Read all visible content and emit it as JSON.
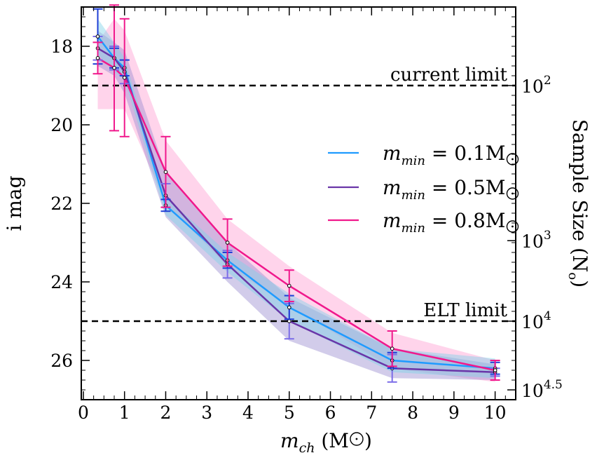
{
  "chart_data": {
    "type": "line",
    "xlabel_main": "m",
    "xlabel_sub": "ch",
    "xlabel_unit": "(M",
    "xlabel_unit_close": ")",
    "ylabel": "i mag",
    "y2label": "Sample Size  (N",
    "y2label_sub": "o",
    "y2label_close": ")",
    "xlim": [
      -0.05,
      10.5
    ],
    "ylim": [
      17.0,
      27.0
    ],
    "x_ticks": [
      0,
      1,
      2,
      3,
      4,
      5,
      6,
      7,
      8,
      9,
      10
    ],
    "x_tick_labels": [
      "0",
      "1",
      "2",
      "3",
      "4",
      "5",
      "6",
      "7",
      "8",
      "9",
      "10"
    ],
    "y_ticks": [
      18,
      20,
      22,
      24,
      26
    ],
    "y_tick_labels": [
      "18",
      "20",
      "22",
      "24",
      "26"
    ],
    "y2_ticks": [
      {
        "mag": 19.0,
        "base": "10",
        "exp": "2"
      },
      {
        "mag": 22.95,
        "base": "10",
        "exp": "3"
      },
      {
        "mag": 25.0,
        "base": "10",
        "exp": "4"
      },
      {
        "mag": 26.75,
        "base": "10",
        "exp": "4.5"
      }
    ],
    "limits": [
      {
        "name": "current-limit",
        "label": "current limit",
        "y": 19.0
      },
      {
        "name": "elt-limit",
        "label": "ELT limit",
        "y": 25.0
      }
    ],
    "series": [
      {
        "name": "0.1",
        "legend_prefix": "m",
        "legend_sub": "min",
        "legend_value": " = 0.1M",
        "color": "#1f9bff",
        "band_color": "#7fd3e8",
        "err_color": "#1f3fd6",
        "x": [
          0.35,
          0.75,
          1.0,
          2.0,
          3.5,
          5.0,
          7.5,
          10.0
        ],
        "y": [
          17.75,
          18.3,
          18.55,
          22.05,
          23.45,
          24.65,
          26.0,
          26.2
        ],
        "err": [
          0.7,
          0.25,
          0.2,
          0.15,
          0.2,
          0.3,
          0.2,
          0.15
        ],
        "band_lo": [
          17.3,
          17.9,
          18.3,
          21.85,
          23.25,
          24.3,
          25.7,
          25.95
        ],
        "band_hi": [
          18.2,
          18.65,
          18.85,
          22.3,
          23.75,
          25.0,
          26.3,
          26.45
        ]
      },
      {
        "name": "0.5",
        "legend_prefix": "m",
        "legend_sub": "min",
        "legend_value": " = 0.5M",
        "color": "#6a35a8",
        "band_color": "#9b8fd0",
        "err_color": "#7b6de8",
        "x": [
          0.35,
          0.75,
          1.0,
          2.0,
          3.5,
          5.0,
          7.5,
          10.0
        ],
        "y": [
          18.05,
          18.3,
          18.65,
          21.8,
          23.55,
          25.0,
          26.2,
          26.3
        ],
        "err": [
          0.3,
          0.3,
          0.3,
          0.3,
          0.35,
          0.45,
          0.35,
          0.1
        ],
        "band_lo": [
          17.6,
          17.9,
          18.1,
          21.2,
          23.0,
          24.4,
          25.7,
          26.1
        ],
        "band_hi": [
          18.5,
          18.75,
          19.2,
          22.35,
          24.0,
          25.5,
          26.45,
          26.5
        ]
      },
      {
        "name": "0.8",
        "legend_prefix": "m",
        "legend_sub": "min",
        "legend_value": " = 0.8M",
        "color": "#f0188c",
        "band_color": "#ff9fd2",
        "err_color": "#f0188c",
        "x": [
          0.35,
          0.75,
          1.0,
          2.0,
          3.5,
          5.0,
          7.5,
          10.0
        ],
        "y": [
          18.3,
          18.55,
          18.8,
          21.2,
          23.0,
          24.1,
          25.7,
          26.25
        ],
        "err": [
          0.4,
          1.6,
          1.5,
          0.9,
          0.6,
          0.4,
          0.45,
          0.25
        ],
        "band_lo": [
          17.9,
          17.3,
          17.6,
          20.4,
          22.4,
          23.6,
          25.3,
          26.0
        ],
        "band_hi": [
          19.6,
          19.6,
          19.6,
          22.0,
          23.6,
          24.6,
          26.2,
          26.55
        ]
      }
    ]
  }
}
